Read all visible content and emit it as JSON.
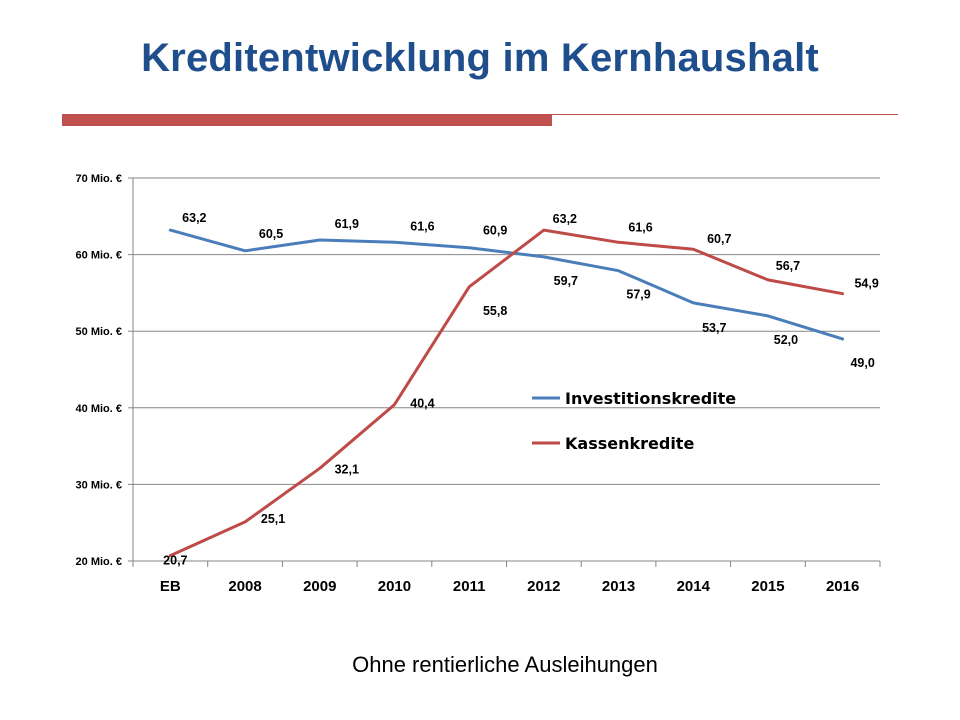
{
  "slide": {
    "title": "Kreditentwicklung im Kernhaushalt",
    "caption": "Ohne rentierliche Ausleihungen",
    "colors": {
      "title": "#1F4E8C",
      "rule": "#C0504D"
    }
  },
  "chart_data": {
    "type": "line",
    "categories": [
      "EB",
      "2008",
      "2009",
      "2010",
      "2011",
      "2012",
      "2013",
      "2014",
      "2015",
      "2016"
    ],
    "ylim": [
      20,
      70
    ],
    "yticks": [
      20,
      30,
      40,
      50,
      60,
      70
    ],
    "ytick_labels": [
      "20 Mio. €",
      "30 Mio. €",
      "40 Mio. €",
      "50 Mio. €",
      "60 Mio. €",
      "70 Mio. €"
    ],
    "grid": true,
    "legend_position": "center-right",
    "series": [
      {
        "name": "Investitionskredite",
        "color": "#4A7EBB",
        "values": [
          63.2,
          60.5,
          61.9,
          61.6,
          60.9,
          59.7,
          57.9,
          53.7,
          52.0,
          49.0
        ],
        "labels": [
          "63,2",
          "60,5",
          "61,9",
          "61,6",
          "60,9",
          "59,7",
          "57,9",
          "53,7",
          "52,0",
          "49,0"
        ]
      },
      {
        "name": "Kassenkredite",
        "color": "#BE4B48",
        "values": [
          20.7,
          25.1,
          32.1,
          40.4,
          55.8,
          63.2,
          61.6,
          60.7,
          56.7,
          54.9
        ],
        "labels": [
          "20,7",
          "25,1",
          "32,1",
          "40,4",
          "55,8",
          "63,2",
          "61,6",
          "60,7",
          "56,7",
          "54,9"
        ]
      }
    ]
  }
}
